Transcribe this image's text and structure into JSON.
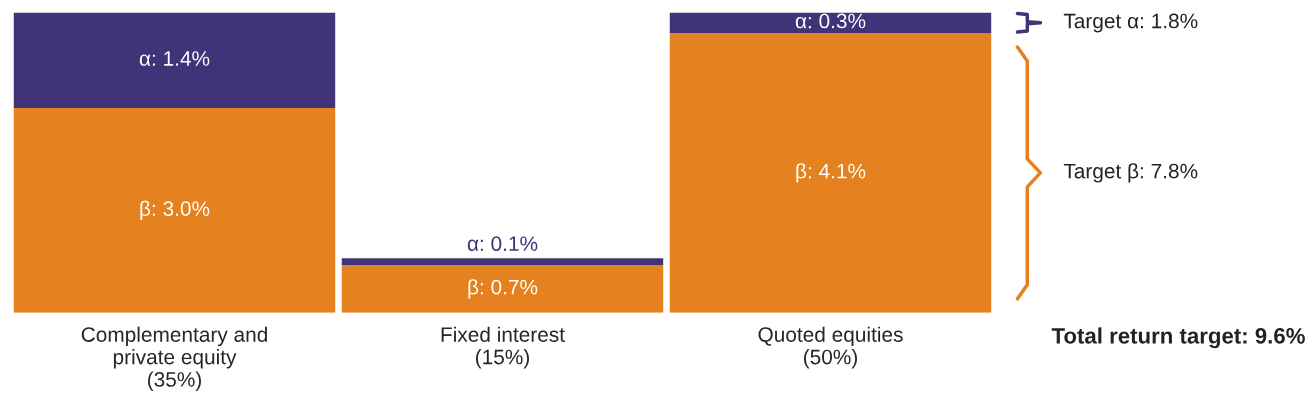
{
  "chart_data": {
    "type": "bar",
    "stacked": true,
    "categories": [
      "Complementary and\nprivate equity\n(35%)",
      "Fixed interest\n(15%)",
      "Quoted equities\n(50%)"
    ],
    "series": [
      {
        "color": "#e6811f",
        "values": [
          3.0,
          0.7,
          4.1
        ],
        "value_labels": [
          "β: 3.0%",
          "β: 0.7%",
          "β: 4.1%"
        ]
      },
      {
        "color": "#413378",
        "values": [
          1.4,
          0.1,
          0.3
        ],
        "value_labels": [
          "α: 1.4%",
          "α: 0.1%",
          "α: 0.3%"
        ]
      }
    ],
    "annotations": [
      "Target α: 1.8%",
      "Target β: 7.8%",
      "Total return target: 9.6%"
    ],
    "grid": false,
    "legend": false,
    "tick_labels": "x"
  }
}
